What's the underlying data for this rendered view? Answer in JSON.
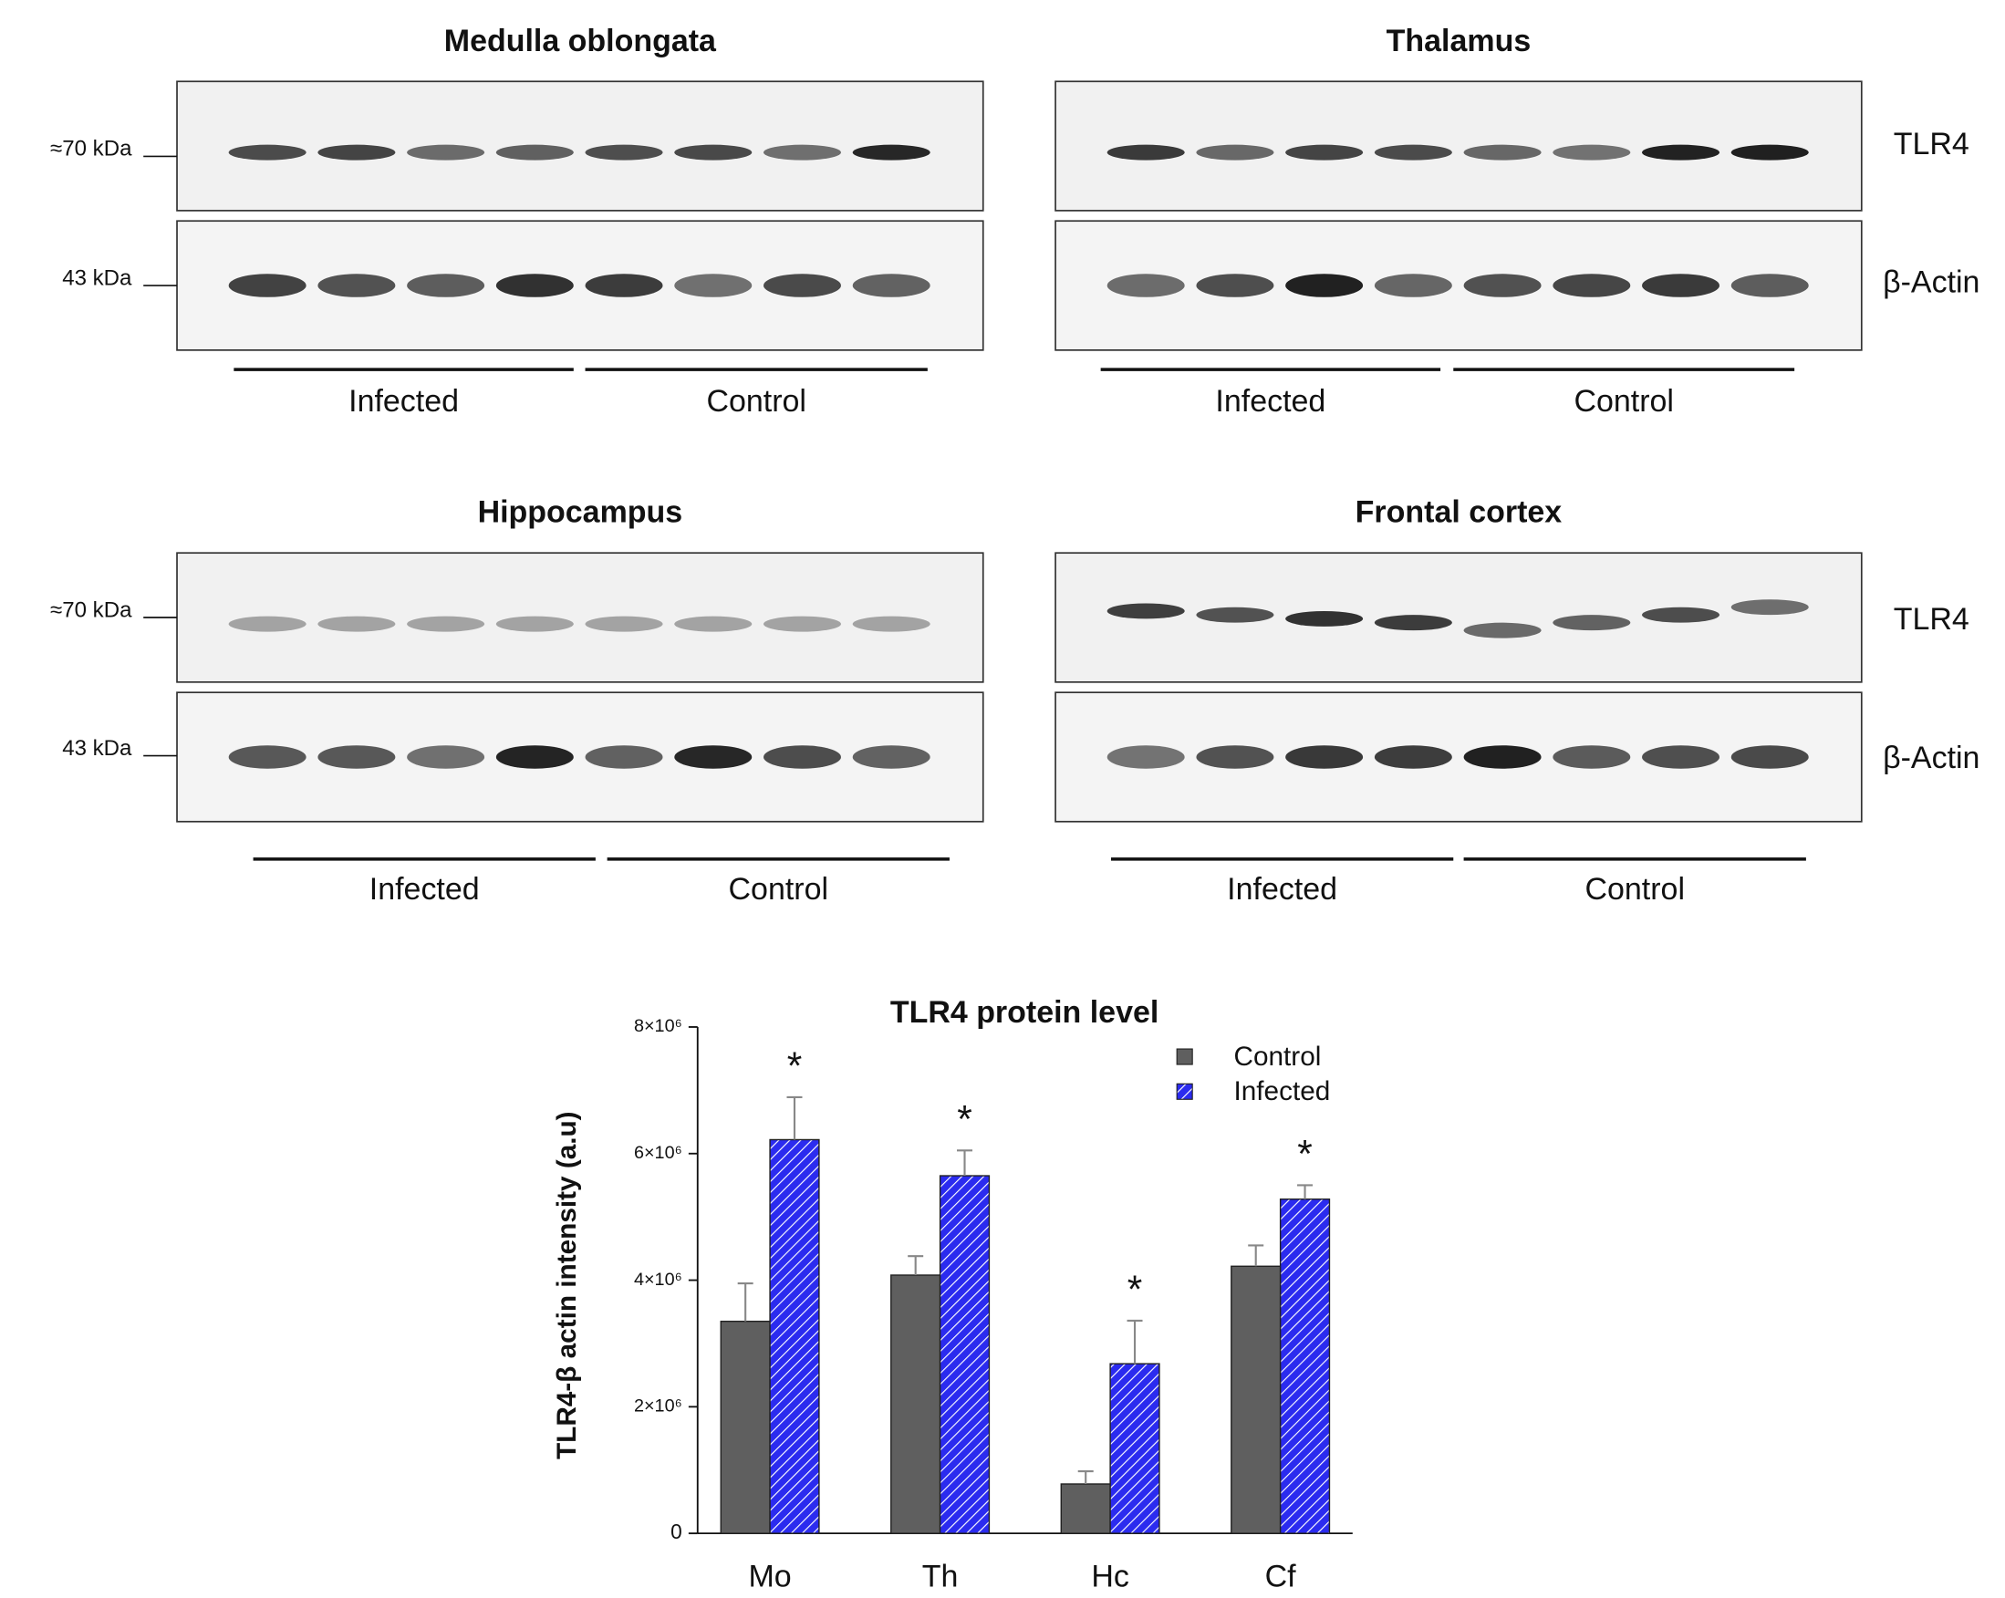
{
  "blot_rows": [
    {
      "panels": [
        {
          "title": "Medulla oblongata",
          "groups": [
            "Infected",
            "Control"
          ]
        },
        {
          "title": "Thalamus",
          "groups": [
            "Infected",
            "Control"
          ]
        }
      ],
      "markers": [
        "≈70 kDa",
        "43 kDa"
      ],
      "band_labels": [
        "TLR4",
        "β-Actin"
      ]
    },
    {
      "panels": [
        {
          "title": "Hippocampus",
          "groups": [
            "Infected",
            "Control"
          ]
        },
        {
          "title": "Frontal cortex",
          "groups": [
            "Infected",
            "Control"
          ]
        }
      ],
      "markers": [
        "≈70 kDa",
        "43 kDa"
      ],
      "band_labels": [
        "TLR4",
        "β-Actin"
      ]
    }
  ],
  "chart_data": {
    "type": "bar",
    "title": "TLR4 protein level",
    "y_label": "TLR4-β actin intensity (a.u)",
    "categories": [
      "Mo",
      "Th",
      "Hc",
      "Cf"
    ],
    "series": [
      {
        "name": "Control",
        "color": "#5f5f5f",
        "values": [
          3350000,
          4080000,
          780000,
          4220000
        ],
        "errors": [
          600000,
          300000,
          200000,
          330000
        ]
      },
      {
        "name": "Infected",
        "color": "#2b2bef",
        "hatch": true,
        "values": [
          6220000,
          5650000,
          2680000,
          5280000
        ],
        "errors": [
          670000,
          400000,
          680000,
          220000
        ],
        "annotations": [
          "*",
          "*",
          "*",
          "*"
        ]
      }
    ],
    "ylim": [
      0,
      8000000
    ],
    "yticks": [
      0,
      {
        "value": 2000000,
        "label": "2×10⁶"
      },
      {
        "value": 4000000,
        "label": "4×10⁶"
      },
      {
        "value": 6000000,
        "label": "6×10⁶"
      },
      {
        "value": 8000000,
        "label": "8×10⁶"
      }
    ],
    "legend": "top-right"
  }
}
